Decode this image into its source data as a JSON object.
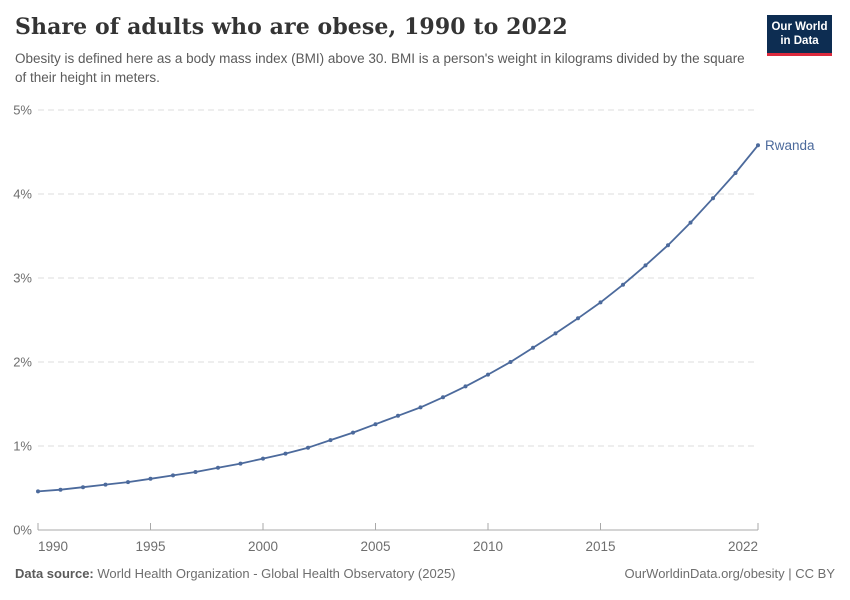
{
  "header": {
    "title": "Share of adults who are obese, 1990 to 2022",
    "subtitle": "Obesity is defined here as a body mass index (BMI) above 30. BMI is a person's weight in kilograms divided by the square of their height in meters."
  },
  "logo": {
    "line1": "Our World",
    "line2": "in Data"
  },
  "chart_data": {
    "type": "line",
    "title": "Share of adults who are obese, 1990 to 2022",
    "xlabel": "",
    "ylabel": "",
    "xlim": [
      1990,
      2022
    ],
    "ylim": [
      0,
      5
    ],
    "grid": "horizontal-dashed",
    "x_ticks": [
      {
        "value": 1990,
        "label": "1990"
      },
      {
        "value": 1995,
        "label": "1995"
      },
      {
        "value": 2000,
        "label": "2000"
      },
      {
        "value": 2005,
        "label": "2005"
      },
      {
        "value": 2010,
        "label": "2010"
      },
      {
        "value": 2015,
        "label": "2015"
      },
      {
        "value": 2022,
        "label": "2022"
      }
    ],
    "y_ticks": [
      {
        "value": 0,
        "label": "0%"
      },
      {
        "value": 1,
        "label": "1%"
      },
      {
        "value": 2,
        "label": "2%"
      },
      {
        "value": 3,
        "label": "3%"
      },
      {
        "value": 4,
        "label": "4%"
      },
      {
        "value": 5,
        "label": "5%"
      }
    ],
    "series": [
      {
        "name": "Rwanda",
        "color": "#4c6a9c",
        "end_label": "Rwanda",
        "x": [
          1990,
          1991,
          1992,
          1993,
          1994,
          1995,
          1996,
          1997,
          1998,
          1999,
          2000,
          2001,
          2002,
          2003,
          2004,
          2005,
          2006,
          2007,
          2008,
          2009,
          2010,
          2011,
          2012,
          2013,
          2014,
          2015,
          2016,
          2017,
          2018,
          2019,
          2020,
          2021,
          2022
        ],
        "values": [
          0.46,
          0.48,
          0.51,
          0.54,
          0.57,
          0.61,
          0.65,
          0.69,
          0.74,
          0.79,
          0.85,
          0.91,
          0.98,
          1.07,
          1.16,
          1.26,
          1.36,
          1.46,
          1.58,
          1.71,
          1.85,
          2.0,
          2.17,
          2.34,
          2.52,
          2.71,
          2.92,
          3.15,
          3.39,
          3.66,
          3.95,
          4.25,
          4.58
        ]
      }
    ]
  },
  "footer": {
    "source_label": "Data source:",
    "source_text": " World Health Organization - Global Health Observatory (2025)",
    "credit": "OurWorldinData.org/obesity | CC BY"
  },
  "colors": {
    "line": "#4c6a9c",
    "grid": "#dcdcdc",
    "axis": "#a9a9a9",
    "tick_text": "#6e6e6e",
    "title_text": "#343434",
    "subtitle_text": "#5b5b5b",
    "footer_text": "#6e6e6e",
    "logo_bg": "#0d2d52",
    "logo_accent": "#dc2a3d"
  }
}
